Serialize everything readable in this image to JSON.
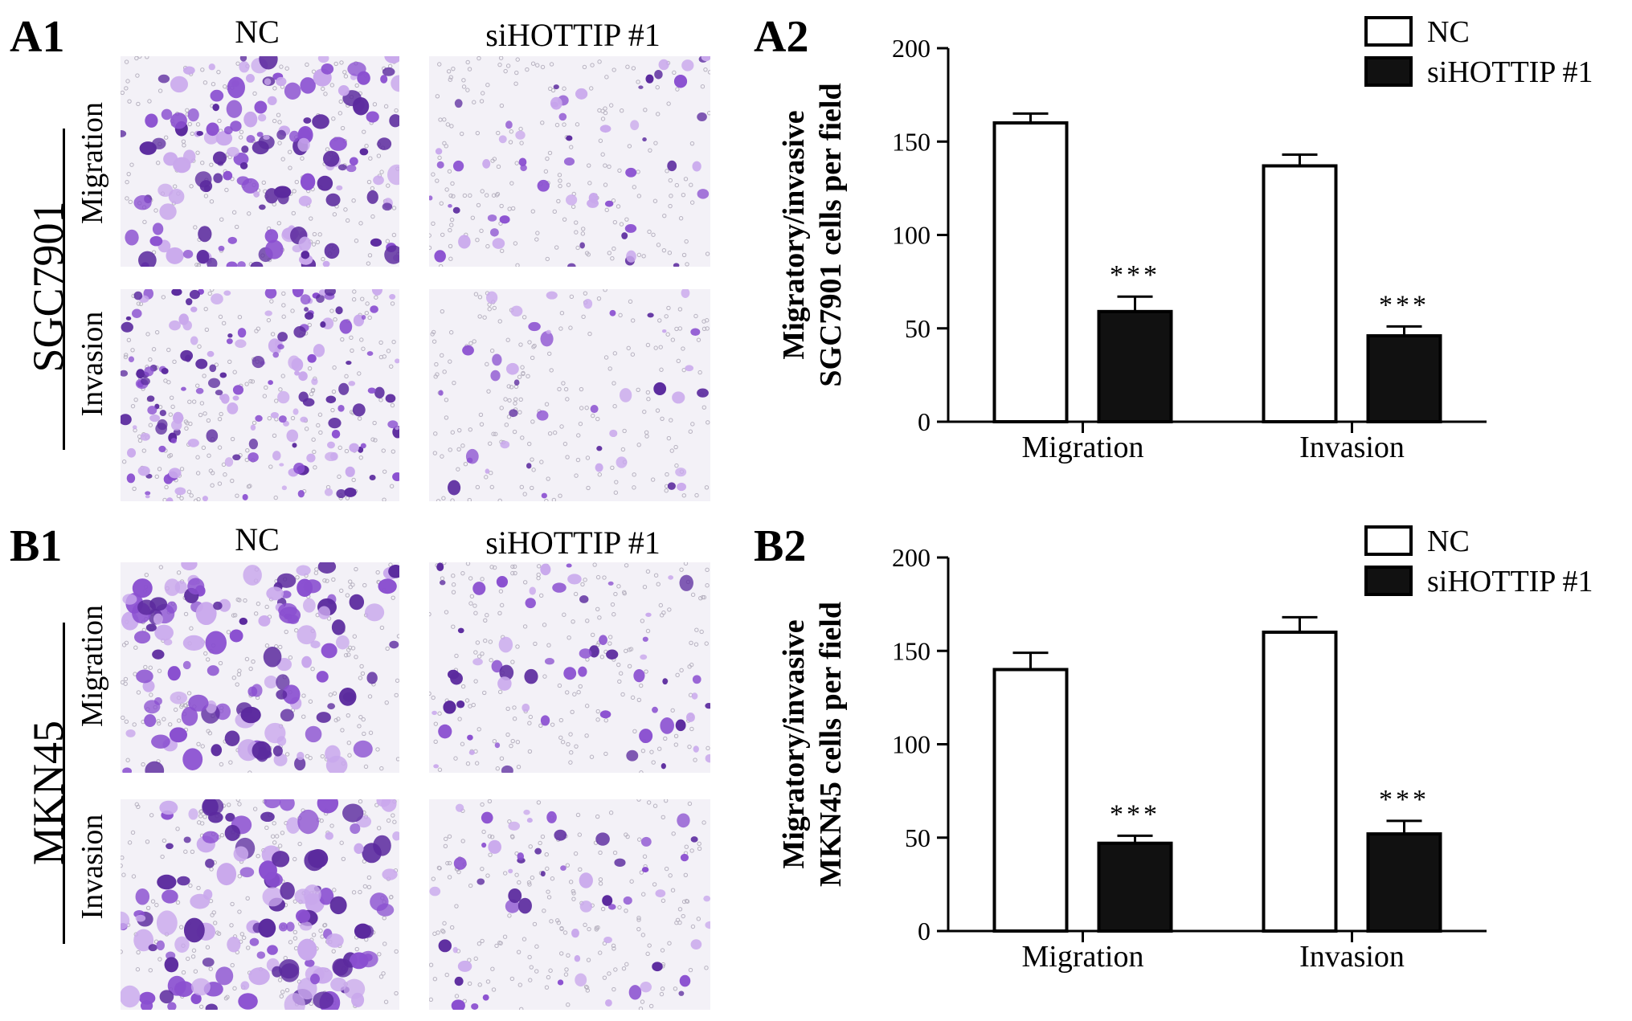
{
  "panels": {
    "A1": {
      "letter": "A1",
      "cell_line": "SGC7901",
      "col_nc": "NC",
      "col_si": "siHOTTIP #1",
      "row_top": "Migration",
      "row_bottom": "Invasion"
    },
    "B1": {
      "letter": "B1",
      "cell_line": "MKN45",
      "col_nc": "NC",
      "col_si": "siHOTTIP #1",
      "row_top": "Migration",
      "row_bottom": "Invasion"
    },
    "A2": {
      "letter": "A2"
    },
    "B2": {
      "letter": "B2"
    }
  },
  "colors": {
    "stain_dark": "#5b2a9e",
    "stain_mid": "#8a4fd0",
    "stain_light": "#c9a8ec",
    "background": "#f3f1f7",
    "bar_si": "#111111",
    "bar_nc": "#ffffff"
  },
  "chart_data": [
    {
      "type": "bar",
      "panel": "A2",
      "ylabel_line1": "Migratory/invasive",
      "ylabel_line2": "SGC7901 cells per field",
      "ylim": [
        0,
        200
      ],
      "yticks": [
        0,
        50,
        100,
        150,
        200
      ],
      "categories": [
        "Migration",
        "Invasion"
      ],
      "legend": [
        "NC",
        "siHOTTIP #1"
      ],
      "legend_position": "top-right",
      "series": [
        {
          "name": "NC",
          "values": [
            160,
            137
          ],
          "errors": [
            5,
            6
          ],
          "marks": [
            "",
            ""
          ]
        },
        {
          "name": "siHOTTIP #1",
          "values": [
            59,
            46
          ],
          "errors": [
            8,
            5
          ],
          "marks": [
            "***",
            "***"
          ]
        }
      ]
    },
    {
      "type": "bar",
      "panel": "B2",
      "ylabel_line1": "Migratory/invasive",
      "ylabel_line2": "MKN45 cells per field",
      "ylim": [
        0,
        200
      ],
      "yticks": [
        0,
        50,
        100,
        150,
        200
      ],
      "categories": [
        "Migration",
        "Invasion"
      ],
      "legend": [
        "NC",
        "siHOTTIP #1"
      ],
      "legend_position": "top-right",
      "series": [
        {
          "name": "NC",
          "values": [
            140,
            160
          ],
          "errors": [
            9,
            8
          ],
          "marks": [
            "",
            ""
          ]
        },
        {
          "name": "siHOTTIP #1",
          "values": [
            47,
            52
          ],
          "errors": [
            4,
            7
          ],
          "marks": [
            "***",
            "***"
          ]
        }
      ]
    }
  ]
}
